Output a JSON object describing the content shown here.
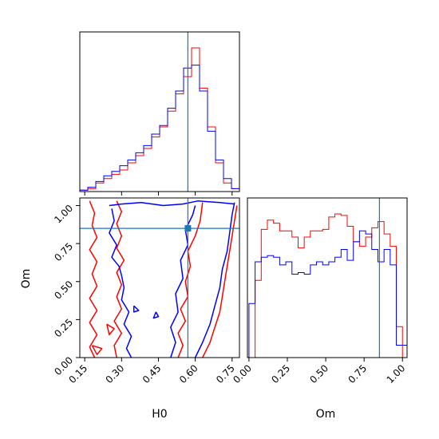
{
  "chart_data": [
    {
      "type": "histogram",
      "panel": "H0-marginal",
      "xlim": [
        0.13,
        0.78
      ],
      "truth": 0.57,
      "bins": [
        0.13,
        0.1625,
        0.195,
        0.2275,
        0.26,
        0.2925,
        0.325,
        0.3575,
        0.39,
        0.4225,
        0.455,
        0.4875,
        0.52,
        0.5525,
        0.585,
        0.6175,
        0.65,
        0.6825,
        0.715,
        0.7475,
        0.78
      ],
      "series": [
        {
          "name": "",
          "color": "#ff0000",
          "counts": [
            0.01,
            0.02,
            0.06,
            0.09,
            0.12,
            0.15,
            0.2,
            0.25,
            0.3,
            0.38,
            0.45,
            0.56,
            0.68,
            0.8,
            1.0,
            0.72,
            0.45,
            0.2,
            0.06,
            0.02
          ]
        },
        {
          "name": "",
          "color": "#0000ff",
          "counts": [
            0.01,
            0.03,
            0.07,
            0.11,
            0.14,
            0.18,
            0.22,
            0.27,
            0.32,
            0.4,
            0.46,
            0.58,
            0.7,
            0.86,
            0.88,
            0.7,
            0.42,
            0.22,
            0.09,
            0.02
          ]
        }
      ]
    },
    {
      "type": "contour",
      "panel": "H0-Om-joint",
      "xlim": [
        0.13,
        0.78
      ],
      "ylim": [
        0.0,
        1.05
      ],
      "xticks": [
        "0.15",
        "0.30",
        "0.45",
        "0.60",
        "0.75"
      ],
      "yticks": [
        "0.00",
        "0.25",
        "0.50",
        "0.75",
        "1.00"
      ],
      "xlabel": "H0",
      "ylabel": "Om",
      "truth": {
        "x": 0.57,
        "y": 0.85
      },
      "series": [
        {
          "name": "",
          "color": "#ff0000",
          "paths": [
            [
              [
                0.17,
                1.03
              ],
              [
                0.19,
                0.95
              ],
              [
                0.18,
                0.87
              ],
              [
                0.2,
                0.79
              ],
              [
                0.17,
                0.71
              ],
              [
                0.2,
                0.63
              ],
              [
                0.18,
                0.55
              ],
              [
                0.2,
                0.47
              ],
              [
                0.17,
                0.39
              ],
              [
                0.2,
                0.31
              ],
              [
                0.17,
                0.23
              ],
              [
                0.2,
                0.15
              ],
              [
                0.17,
                0.07
              ],
              [
                0.19,
                0.0
              ]
            ],
            [
              [
                0.28,
                0.0
              ],
              [
                0.27,
                0.08
              ],
              [
                0.3,
                0.16
              ],
              [
                0.27,
                0.24
              ],
              [
                0.3,
                0.32
              ],
              [
                0.28,
                0.4
              ],
              [
                0.3,
                0.48
              ],
              [
                0.28,
                0.56
              ],
              [
                0.31,
                0.64
              ],
              [
                0.28,
                0.72
              ],
              [
                0.3,
                0.8
              ],
              [
                0.28,
                0.88
              ],
              [
                0.3,
                0.96
              ],
              [
                0.28,
                1.03
              ]
            ],
            [
              [
                0.53,
                0.0
              ],
              [
                0.55,
                0.08
              ],
              [
                0.53,
                0.16
              ],
              [
                0.56,
                0.24
              ],
              [
                0.54,
                0.32
              ],
              [
                0.57,
                0.4
              ],
              [
                0.56,
                0.5
              ],
              [
                0.58,
                0.6
              ],
              [
                0.57,
                0.7
              ],
              [
                0.6,
                0.8
              ],
              [
                0.62,
                0.9
              ],
              [
                0.63,
                1.02
              ]
            ],
            [
              [
                0.63,
                0.0
              ],
              [
                0.66,
                0.1
              ],
              [
                0.68,
                0.2
              ],
              [
                0.7,
                0.3
              ],
              [
                0.71,
                0.4
              ],
              [
                0.72,
                0.5
              ],
              [
                0.73,
                0.6
              ],
              [
                0.74,
                0.7
              ],
              [
                0.75,
                0.8
              ],
              [
                0.76,
                0.9
              ],
              [
                0.77,
                1.0
              ]
            ],
            [
              [
                0.18,
                0.08
              ],
              [
                0.22,
                0.06
              ],
              [
                0.2,
                0.02
              ],
              [
                0.18,
                0.08
              ]
            ],
            [
              [
                0.24,
                0.22
              ],
              [
                0.27,
                0.19
              ],
              [
                0.25,
                0.15
              ],
              [
                0.24,
                0.22
              ]
            ]
          ]
        },
        {
          "name": "",
          "color": "#0000ff",
          "paths": [
            [
              [
                0.25,
                1.0
              ],
              [
                0.3,
                1.01
              ],
              [
                0.38,
                1.02
              ],
              [
                0.47,
                1.0
              ],
              [
                0.55,
                1.01
              ],
              [
                0.61,
                1.03
              ],
              [
                0.7,
                1.02
              ],
              [
                0.76,
                1.01
              ]
            ],
            [
              [
                0.26,
                0.98
              ],
              [
                0.27,
                0.9
              ],
              [
                0.25,
                0.82
              ],
              [
                0.28,
                0.74
              ],
              [
                0.26,
                0.66
              ],
              [
                0.29,
                0.6
              ],
              [
                0.3,
                0.54
              ]
            ],
            [
              [
                0.3,
                0.54
              ],
              [
                0.31,
                0.46
              ],
              [
                0.3,
                0.38
              ],
              [
                0.33,
                0.3
              ],
              [
                0.31,
                0.22
              ],
              [
                0.34,
                0.14
              ],
              [
                0.32,
                0.06
              ],
              [
                0.34,
                0.0
              ]
            ],
            [
              [
                0.5,
                0.0
              ],
              [
                0.52,
                0.1
              ],
              [
                0.5,
                0.2
              ],
              [
                0.53,
                0.3
              ],
              [
                0.52,
                0.42
              ],
              [
                0.55,
                0.52
              ],
              [
                0.54,
                0.64
              ],
              [
                0.57,
                0.74
              ],
              [
                0.56,
                0.84
              ],
              [
                0.59,
                0.94
              ],
              [
                0.6,
                1.0
              ]
            ],
            [
              [
                0.6,
                0.0
              ],
              [
                0.63,
                0.1
              ],
              [
                0.66,
                0.22
              ],
              [
                0.68,
                0.34
              ],
              [
                0.7,
                0.46
              ],
              [
                0.71,
                0.58
              ],
              [
                0.73,
                0.7
              ],
              [
                0.74,
                0.82
              ],
              [
                0.75,
                0.94
              ],
              [
                0.76,
                1.02
              ]
            ],
            [
              [
                0.44,
                0.3
              ],
              [
                0.45,
                0.27
              ],
              [
                0.43,
                0.26
              ],
              [
                0.44,
                0.3
              ]
            ],
            [
              [
                0.35,
                0.34
              ],
              [
                0.37,
                0.31
              ],
              [
                0.35,
                0.3
              ],
              [
                0.35,
                0.34
              ]
            ]
          ]
        }
      ]
    },
    {
      "type": "histogram",
      "panel": "Om-marginal",
      "xlim": [
        -0.01,
        1.03
      ],
      "xticks": [
        "0.00",
        "0.25",
        "0.50",
        "0.75",
        "1.00"
      ],
      "xlabel": "Om",
      "truth": 0.85,
      "bins": [
        0.0,
        0.04,
        0.08,
        0.12,
        0.16,
        0.2,
        0.24,
        0.28,
        0.32,
        0.36,
        0.4,
        0.44,
        0.48,
        0.52,
        0.56,
        0.6,
        0.64,
        0.68,
        0.72,
        0.76,
        0.8,
        0.84,
        0.88,
        0.92,
        0.96,
        1.0,
        1.03
      ],
      "series": [
        {
          "name": "",
          "color": "#ff0000",
          "counts": [
            0.0,
            0.5,
            0.83,
            0.89,
            0.87,
            0.82,
            0.82,
            0.78,
            0.71,
            0.78,
            0.82,
            0.82,
            0.83,
            0.91,
            0.93,
            0.92,
            0.85,
            0.75,
            0.72,
            0.78,
            0.84,
            0.88,
            0.8,
            0.72,
            0.2,
            0.0
          ]
        },
        {
          "name": "",
          "color": "#0000ff",
          "counts": [
            0.35,
            0.62,
            0.65,
            0.66,
            0.65,
            0.6,
            0.62,
            0.54,
            0.55,
            0.54,
            0.6,
            0.62,
            0.6,
            0.62,
            0.65,
            0.7,
            0.63,
            0.75,
            0.82,
            0.8,
            0.7,
            0.62,
            0.7,
            0.6,
            0.08,
            0.08
          ]
        }
      ]
    }
  ]
}
